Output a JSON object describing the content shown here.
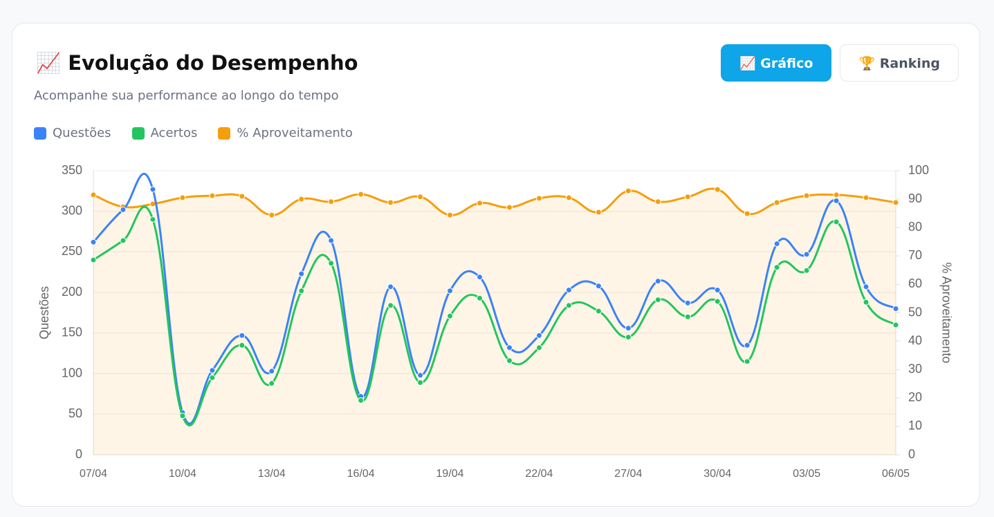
{
  "header": {
    "title": "📈 Evolução do Desempenho",
    "subtitle": "Acompanhe sua performance ao longo do tempo"
  },
  "buttons": [
    {
      "label": "📈 Gráfico",
      "active": true
    },
    {
      "label": "🏆 Ranking",
      "active": false
    }
  ],
  "chart_data": {
    "type": "line",
    "legend": "top-left",
    "grid": true,
    "ylabel": "Questões",
    "y2label": "% Aproveitamento",
    "categories": [
      "07/04",
      null,
      null,
      "10/04",
      null,
      null,
      "13/04",
      null,
      null,
      "16/04",
      null,
      null,
      "19/04",
      null,
      null,
      "22/04",
      null,
      null,
      "27/04",
      null,
      null,
      "30/04",
      null,
      null,
      "03/05",
      null,
      null,
      "06/05"
    ],
    "series": [
      {
        "name": "Questões",
        "color": "#3b82f6",
        "values": [
          262,
          302,
          327,
          52,
          104,
          147,
          103,
          223,
          264,
          72,
          207,
          98,
          202,
          219,
          132,
          147,
          203,
          208,
          156,
          214,
          187,
          203,
          135,
          260,
          247,
          313,
          207,
          180
        ]
      },
      {
        "name": "Acertos",
        "color": "#22c55e",
        "values": [
          240,
          264,
          290,
          48,
          95,
          135,
          88,
          202,
          236,
          67,
          184,
          89,
          171,
          193,
          116,
          132,
          184,
          177,
          145,
          191,
          170,
          189,
          115,
          231,
          227,
          287,
          188,
          160
        ]
      },
      {
        "name": "% Aproveitamento",
        "color": "#f59e0b",
        "axis": "y2",
        "area": true,
        "values": [
          91.5,
          87.3,
          88.3,
          90.5,
          91.2,
          91.0,
          84.4,
          90.0,
          89.1,
          91.7,
          88.8,
          90.8,
          84.4,
          88.6,
          87.1,
          90.3,
          90.5,
          85.4,
          92.9,
          89.1,
          90.8,
          93.4,
          84.9,
          88.8,
          91.2,
          91.5,
          90.5,
          88.8
        ]
      }
    ],
    "ylim": [
      0,
      350
    ],
    "yticks": [
      0,
      50,
      100,
      150,
      200,
      250,
      300,
      350
    ],
    "y2lim": [
      0,
      100
    ],
    "y2ticks": [
      0,
      10,
      20,
      30,
      40,
      50,
      60,
      70,
      80,
      90,
      100
    ]
  }
}
